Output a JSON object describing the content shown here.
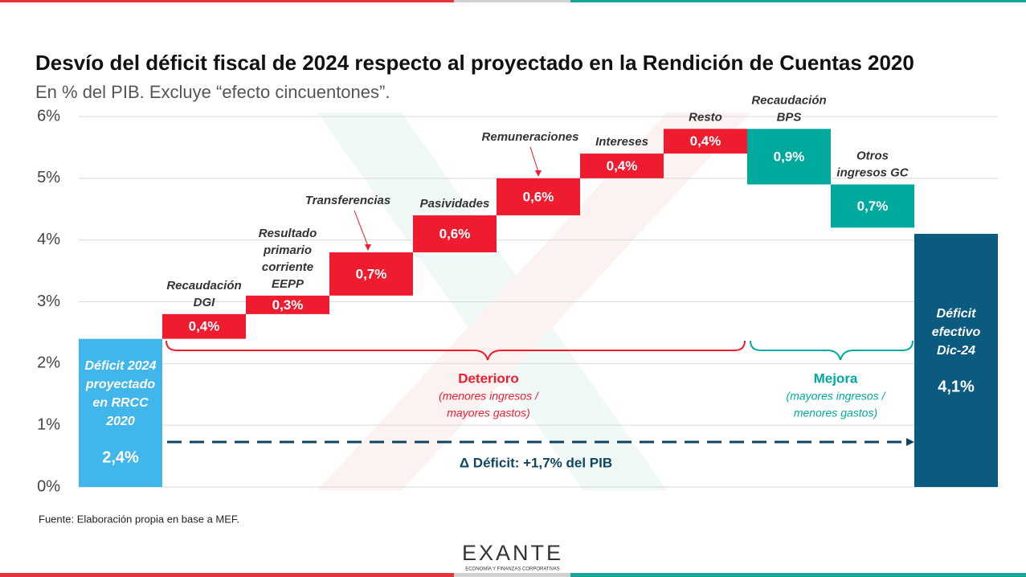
{
  "chart_data": {
    "type": "waterfall",
    "title": "Desvío del déficit fiscal de 2024 respecto al proyectado en la Rendición de Cuentas 2020",
    "subtitle": "En % del PIB. Excluye “efecto cincuentones”.",
    "categories": [
      [
        "Déficit 2024",
        "proyectado",
        "en RRCC",
        "2020"
      ],
      [
        "Recaudación",
        "DGI"
      ],
      [
        "Resultado",
        "primario",
        "corriente",
        "EEPP"
      ],
      [
        "Transferencias"
      ],
      [
        "Pasividades"
      ],
      [
        "Remuneraciones"
      ],
      [
        "Intereses"
      ],
      [
        "Resto"
      ],
      [
        "Recaudación",
        "BPS"
      ],
      [
        "Otros",
        "ingresos GC"
      ],
      [
        "Déficit",
        "efectivo",
        "Dic-24"
      ]
    ],
    "steps": [
      "total",
      "up",
      "up",
      "up",
      "up",
      "up",
      "up",
      "up",
      "down",
      "down",
      "total"
    ],
    "values": [
      2.4,
      0.4,
      0.3,
      0.7,
      0.6,
      0.6,
      0.4,
      0.4,
      0.9,
      0.7,
      4.1
    ],
    "value_labels": [
      "2,4%",
      "0,4%",
      "0,3%",
      "0,7%",
      "0,6%",
      "0,6%",
      "0,4%",
      "0,4%",
      "0,9%",
      "0,7%",
      "4,1%"
    ],
    "colors": {
      "start": "#41b6ea",
      "up": "#ee1c2e",
      "down": "#00a99d",
      "end": "#0b5a80"
    },
    "ylim": [
      0,
      6
    ],
    "yticks": [
      {
        "value": 0,
        "label": "0%"
      },
      {
        "value": 1,
        "label": "1%"
      },
      {
        "value": 2,
        "label": "2%"
      },
      {
        "value": 3,
        "label": "3%"
      },
      {
        "value": 4,
        "label": "4%"
      },
      {
        "value": 5,
        "label": "5%"
      },
      {
        "value": 6,
        "label": "6%"
      }
    ],
    "grid": true,
    "annotations": {
      "deterioro": "Deterioro",
      "deterioro_note": [
        "(menores ingresos /",
        "mayores gastos)"
      ],
      "mejora": "Mejora",
      "mejora_note": [
        "(mayores ingresos /",
        "menores gastos)"
      ],
      "delta": "Δ Déficit: +1,7% del PIB"
    },
    "source": "Fuente: Elaboración propia en base a MEF.",
    "brand": "EXANTE",
    "brand_tagline": "ECONOMÍA Y FINANZAS CORPORATIVAS"
  }
}
